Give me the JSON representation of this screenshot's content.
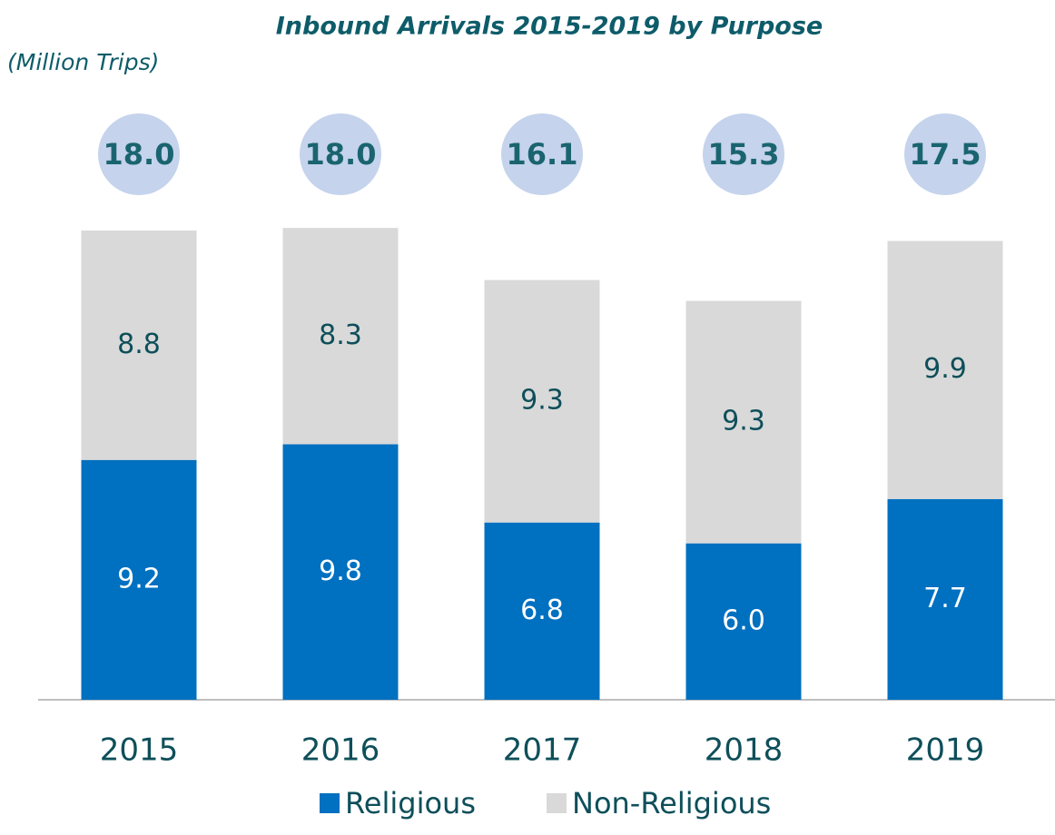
{
  "chart_data": {
    "type": "stacked_bar",
    "title": "Inbound Arrivals 2015-2019 by Purpose",
    "subtitle": "(Million Trips)",
    "categories": [
      "2015",
      "2016",
      "2017",
      "2018",
      "2019"
    ],
    "series": [
      {
        "name": "Religious",
        "color": "#0070c0",
        "values": [
          9.2,
          9.8,
          6.8,
          6,
          7.7
        ],
        "value_labels": [
          "9.2",
          "9.8",
          "6.8",
          "6.0",
          "7.7"
        ]
      },
      {
        "name": "Non-Religious",
        "color": "#d9d9d9",
        "values": [
          8.8,
          8.3,
          9.3,
          9.3,
          9.9
        ],
        "value_labels": [
          "8.8",
          "8.3",
          "9.3",
          "9.3",
          "9.9"
        ]
      }
    ],
    "totals": [
      18,
      18,
      16.1,
      15.3,
      17.5
    ],
    "total_labels": [
      "18.0",
      "18.0",
      "16.1",
      "15.3",
      "17.5"
    ],
    "ylim": [
      0,
      18
    ]
  }
}
